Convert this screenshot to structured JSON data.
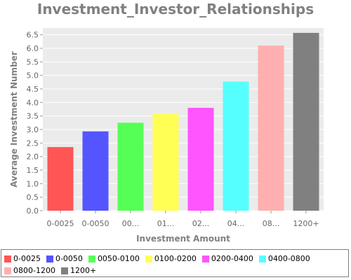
{
  "chart_data": {
    "type": "bar",
    "title": "Investment_Investor_Relationships",
    "xlabel": "Investment Amount",
    "ylabel": "Average Investment Number",
    "categories": [
      "0-0025",
      "0-0050",
      "0050-0100",
      "0100-0200",
      "0200-0400",
      "0400-0800",
      "0800-1200",
      "1200+"
    ],
    "tick_labels": [
      "0-0025",
      "0-0050",
      "00...",
      "01...",
      "02...",
      "04...",
      "08...",
      "1200+"
    ],
    "values": [
      2.35,
      2.93,
      3.25,
      3.58,
      3.8,
      4.77,
      6.1,
      6.57
    ],
    "colors": [
      "#ff5555",
      "#5555ff",
      "#55ff55",
      "#ffff55",
      "#ff55ff",
      "#55ffff",
      "#ffafaf",
      "#808080"
    ],
    "ylim": [
      0,
      6.75
    ],
    "yticks": [
      "0.0",
      "0.5",
      "1.0",
      "1.5",
      "2.0",
      "2.5",
      "3.0",
      "3.5",
      "4.0",
      "4.5",
      "5.0",
      "5.5",
      "6.0",
      "6.5"
    ],
    "grid": true,
    "legend_position": "bottom",
    "legend": [
      "0-0025",
      "0-0050",
      "0050-0100",
      "0100-0200",
      "0200-0400",
      "0400-0800",
      "0800-1200",
      "1200+"
    ],
    "plot_background": "#ebebeb"
  }
}
